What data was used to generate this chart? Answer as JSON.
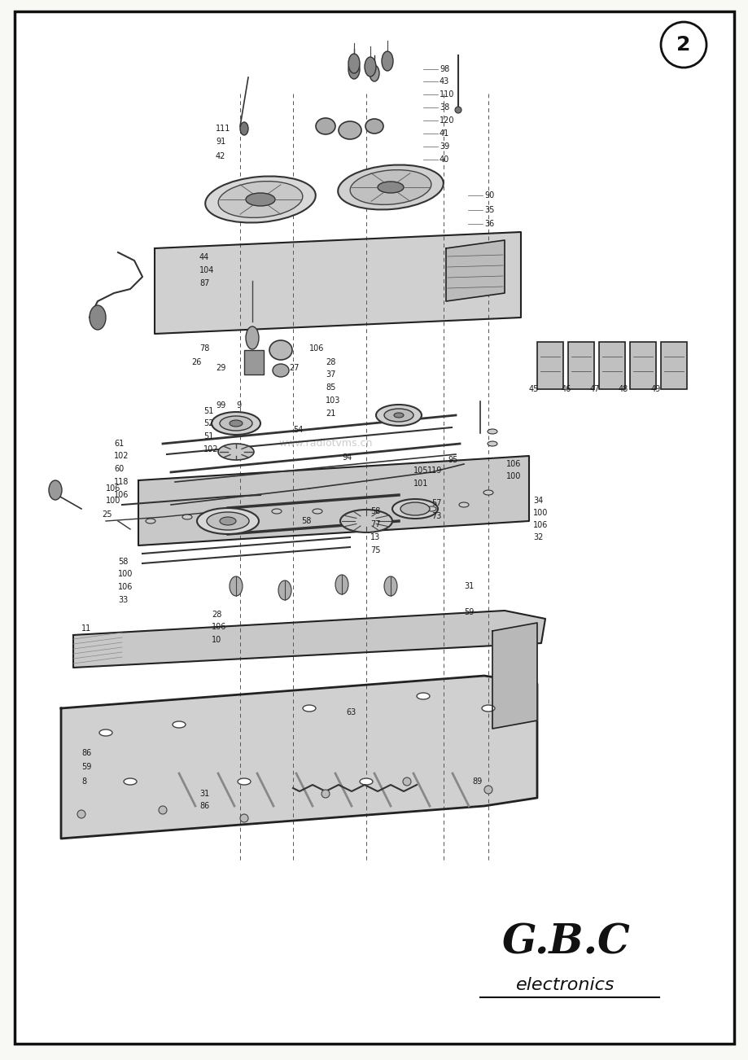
{
  "bg_color": "#f8f8f5",
  "border_color": "#1a1a1a",
  "page_number": "2",
  "brand_line1": "G.B.C",
  "brand_line2": "electronics",
  "watermark": "www.radiotvms.cn",
  "figw": 9.2,
  "figh": 13.02,
  "dpi": 100
}
